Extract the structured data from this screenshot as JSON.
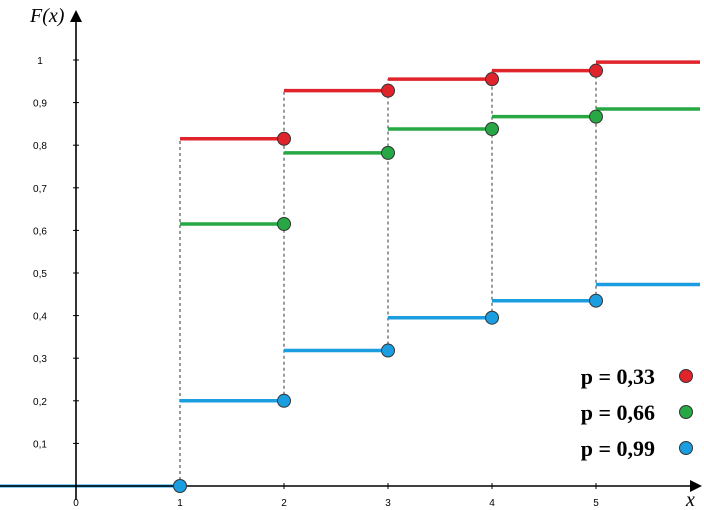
{
  "chart_data": {
    "type": "line",
    "step": true,
    "ylabel": "F(x)",
    "xlabel": "x",
    "xlim": [
      -0.75,
      6.05
    ],
    "ylim": [
      0,
      1.08
    ],
    "x_ticks": [
      {
        "value": 0,
        "label": "0"
      },
      {
        "value": 1,
        "label": "1"
      },
      {
        "value": 2,
        "label": "2"
      },
      {
        "value": 3,
        "label": "3"
      },
      {
        "value": 4,
        "label": "4"
      },
      {
        "value": 5,
        "label": "5"
      }
    ],
    "y_ticks": [
      {
        "value": 0.1,
        "label": "0,1"
      },
      {
        "value": 0.2,
        "label": "0,2"
      },
      {
        "value": 0.3,
        "label": "0,3"
      },
      {
        "value": 0.4,
        "label": "0,4"
      },
      {
        "value": 0.5,
        "label": "0,5"
      },
      {
        "value": 0.6,
        "label": "0,6"
      },
      {
        "value": 0.7,
        "label": "0,7"
      },
      {
        "value": 0.8,
        "label": "0,8"
      },
      {
        "value": 0.9,
        "label": "0,9"
      },
      {
        "value": 1,
        "label": "1"
      }
    ],
    "grid": false,
    "legend_position": "bottom-right",
    "series": [
      {
        "name": "p = 0,33",
        "legend_label": "p = 0,33",
        "color": "#e0242b",
        "steps": [
          {
            "x": 1,
            "y": 0.815
          },
          {
            "x": 2,
            "y": 0.928
          },
          {
            "x": 3,
            "y": 0.955
          },
          {
            "x": 4,
            "y": 0.975
          },
          {
            "x": 5,
            "y": 0.995
          }
        ]
      },
      {
        "name": "p = 0,66",
        "legend_label": "p = 0,66",
        "color": "#27a845",
        "steps": [
          {
            "x": 1,
            "y": 0.615
          },
          {
            "x": 2,
            "y": 0.782
          },
          {
            "x": 3,
            "y": 0.838
          },
          {
            "x": 4,
            "y": 0.867
          },
          {
            "x": 5,
            "y": 0.885
          }
        ]
      },
      {
        "name": "p = 0,99",
        "legend_label": "p = 0,99",
        "color": "#1b9ee0",
        "steps": [
          {
            "x": 1,
            "y": 0.2
          },
          {
            "x": 2,
            "y": 0.318
          },
          {
            "x": 3,
            "y": 0.395
          },
          {
            "x": 4,
            "y": 0.435
          },
          {
            "x": 5,
            "y": 0.473
          }
        ]
      }
    ]
  },
  "colors": {
    "dashed_guides": "#333333",
    "axis": "#000000",
    "marker_stroke": "#333333"
  }
}
